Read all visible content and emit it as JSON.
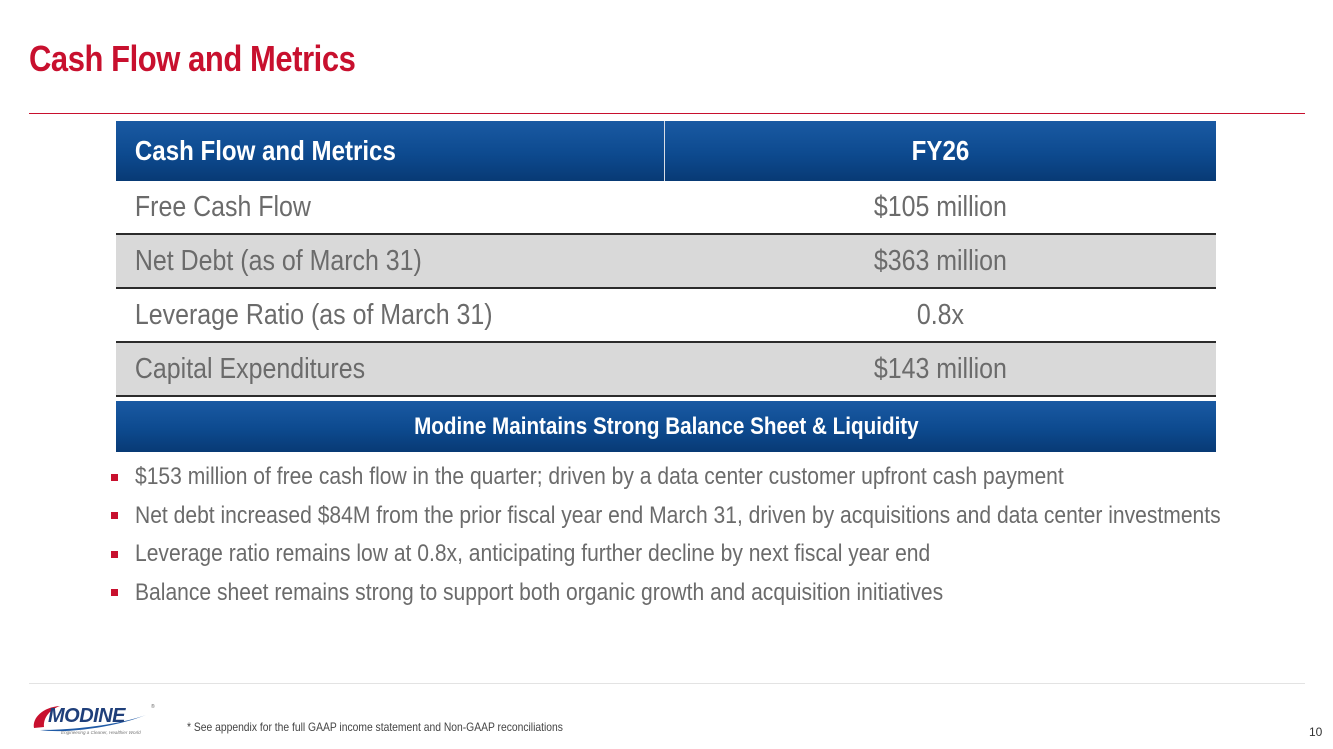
{
  "slide": {
    "title": "Cash Flow and Metrics",
    "page_number": "10",
    "footnote": "* See appendix for the full GAAP income statement and Non-GAAP reconciliations"
  },
  "table": {
    "header_label": "Cash Flow and Metrics",
    "header_period": "FY26",
    "rows": [
      {
        "label": "Free Cash Flow",
        "value": "$105 million"
      },
      {
        "label": "Net Debt (as of March 31)",
        "value": "$363 million"
      },
      {
        "label": "Leverage Ratio (as of March 31)",
        "value": "0.8x"
      },
      {
        "label": "Capital Expenditures",
        "value": "$143 million"
      }
    ]
  },
  "banner": {
    "text": "Modine Maintains Strong Balance Sheet & Liquidity"
  },
  "bullets": [
    "$153 million of free cash flow in the quarter; driven by a data center customer upfront cash payment",
    "Net debt increased $84M from the prior fiscal year end March 31, driven by acquisitions and data center investments",
    "Leverage ratio remains low at 0.8x, anticipating further decline by next fiscal year end",
    "Balance sheet remains strong to support both organic growth and acquisition initiatives"
  ],
  "logo": {
    "wordmark": "MODINE",
    "tagline": "Engineering a Cleaner, Healthier World",
    "icon": "modine-logo-swoosh"
  },
  "colors": {
    "title_red": "#c8102e",
    "header_blue": "#0d4a8f",
    "body_gray": "#6b6b6b",
    "row_shade": "#d9d9d9"
  }
}
